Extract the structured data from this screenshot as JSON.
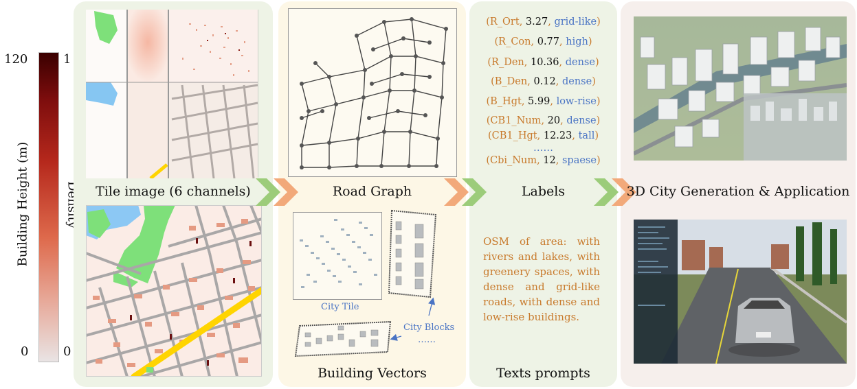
{
  "colorbar": {
    "height_label": "Building Height (m)",
    "density_label": "Density",
    "height_max": "120",
    "height_min": "0",
    "density_max": "1",
    "density_min": "0",
    "color_top": "#3a0000",
    "color_bottom": "#e9e4e4"
  },
  "captions": {
    "tile_image": "Tile image (6 channels)",
    "road_graph": "Road Graph",
    "labels": "Labels",
    "city_gen": "3D City Generation & Application",
    "building_vectors": "Building Vectors",
    "texts_prompts": "Texts prompts"
  },
  "building_vectors": {
    "city_tile": "City Tile",
    "city_blocks": "City Blocks",
    "ellipsis": "……"
  },
  "labels": [
    {
      "key": "R_Ort",
      "value": "3.27",
      "desc": "grid-like"
    },
    {
      "key": "R_Con",
      "value": "0.77",
      "desc": "high"
    },
    {
      "key": "R_Den",
      "value": "10.36",
      "desc": "dense"
    },
    {
      "key": "B_Den",
      "value": "0.12",
      "desc": "dense"
    },
    {
      "key": "B_Hgt",
      "value": "5.99",
      "desc": "low-rise"
    },
    {
      "key": "CB1_Num",
      "value": "20",
      "desc": "dense"
    },
    {
      "key": "CB1_Hgt",
      "value": "12.23",
      "desc": "tall"
    },
    {
      "key": "Cbi_Num",
      "value": "12",
      "desc": "spaese"
    }
  ],
  "labels_ellipsis": "……",
  "text_prompt": "OSM of area: with rivers and lakes, with greenery spaces, with dense and grid-like roads, with dense and low-rise buildings.",
  "colors": {
    "panel_green": "#eef3e6",
    "panel_yellow": "#fdf7e6",
    "panel_pink": "#f6efec",
    "arrow_green": "#9ccc7a",
    "arrow_orange": "#f2a97a",
    "label_orange": "#c87a2c",
    "label_blue": "#4a74c4"
  }
}
